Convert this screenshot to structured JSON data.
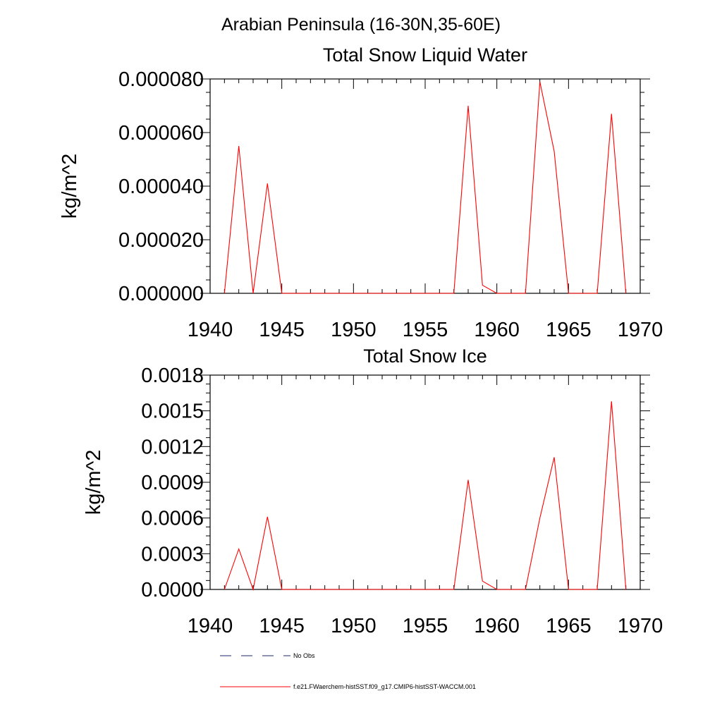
{
  "header": {
    "region": "Arabian Peninsula (16-30N,35-60E)"
  },
  "chart_data": [
    {
      "type": "line",
      "title": "Total Snow Liquid Water",
      "ylabel": "kg/m^2",
      "xlabel": "",
      "xlim": [
        1940,
        1970
      ],
      "ylim": [
        0,
        8e-05
      ],
      "x_ticks": [
        "1940",
        "1945",
        "1950",
        "1955",
        "1960",
        "1965",
        "1970"
      ],
      "y_ticks": [
        "0.000000",
        "0.000020",
        "0.000040",
        "0.000060",
        "0.000080"
      ],
      "x": [
        1941,
        1942,
        1943,
        1944,
        1945,
        1946,
        1947,
        1948,
        1949,
        1950,
        1951,
        1952,
        1953,
        1954,
        1955,
        1956,
        1957,
        1958,
        1959,
        1960,
        1961,
        1962,
        1963,
        1964,
        1965,
        1966,
        1967,
        1968,
        1969
      ],
      "series": [
        {
          "name": "f.e21.FWaerchem-histSST.f09_g17.CMIP6-histSST-WACCM.001",
          "color": "#ff0000",
          "values": [
            0,
            5.5e-05,
            0,
            4.1e-05,
            0,
            0,
            0,
            0,
            0,
            0,
            0,
            0,
            0,
            0,
            0,
            0,
            0,
            7e-05,
            3e-06,
            0,
            0,
            0,
            7.9e-05,
            5.3e-05,
            0,
            0,
            0,
            6.7e-05,
            0
          ]
        }
      ],
      "grid": false
    },
    {
      "type": "line",
      "title": "Total Snow Ice",
      "ylabel": "kg/m^2",
      "xlabel": "",
      "xlim": [
        1940,
        1970
      ],
      "ylim": [
        0,
        0.0018
      ],
      "x_ticks": [
        "1940",
        "1945",
        "1950",
        "1955",
        "1960",
        "1965",
        "1970"
      ],
      "y_ticks": [
        "0.0000",
        "0.0003",
        "0.0006",
        "0.0009",
        "0.0012",
        "0.0015",
        "0.0018"
      ],
      "x": [
        1941,
        1942,
        1943,
        1944,
        1945,
        1946,
        1947,
        1948,
        1949,
        1950,
        1951,
        1952,
        1953,
        1954,
        1955,
        1956,
        1957,
        1958,
        1959,
        1960,
        1961,
        1962,
        1963,
        1964,
        1965,
        1966,
        1967,
        1968,
        1969
      ],
      "series": [
        {
          "name": "f.e21.FWaerchem-histSST.f09_g17.CMIP6-histSST-WACCM.001",
          "color": "#ff0000",
          "values": [
            0,
            0.00034,
            0,
            0.00061,
            0,
            0,
            0,
            0,
            0,
            0,
            0,
            0,
            0,
            0,
            0,
            0,
            0,
            0.00092,
            7e-05,
            0,
            0,
            0,
            0.0006,
            0.00111,
            0,
            0,
            0,
            0.00158,
            0
          ]
        }
      ],
      "grid": false
    }
  ],
  "legend": {
    "placement": "bottom",
    "items": [
      {
        "label": "No Obs",
        "color": "#1f2a6b",
        "style": "dashed"
      },
      {
        "label": "f.e21.FWaerchem-histSST.f09_g17.CMIP6-histSST-WACCM.001",
        "color": "#ff0000",
        "style": "solid"
      }
    ]
  }
}
